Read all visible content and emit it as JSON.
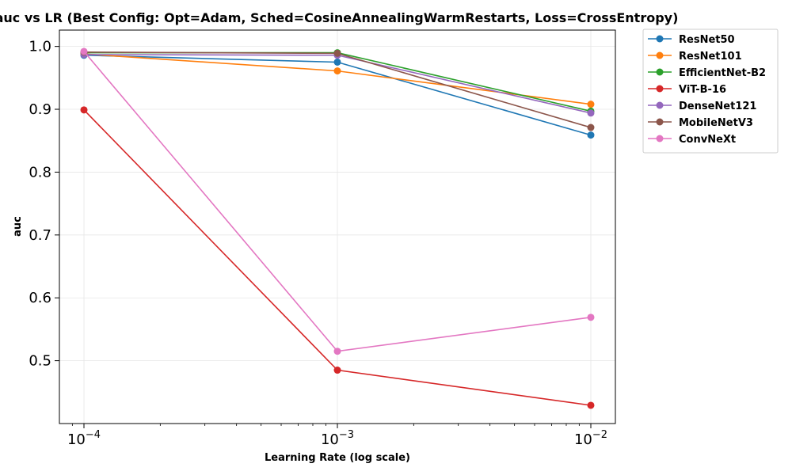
{
  "chart_data": {
    "type": "line",
    "title": "auc vs LR (Best Config: Opt=Adam, Sched=CosineAnnealingWarmRestarts, Loss=CrossEntropy)",
    "xlabel": "Learning Rate (log scale)",
    "ylabel": "auc",
    "xscale": "log",
    "x": [
      0.0001,
      0.001,
      0.01
    ],
    "xlim": [
      8e-05,
      0.0125
    ],
    "ylim": [
      0.4,
      1.026
    ],
    "grid": true,
    "legend_position": "outside-top-right",
    "x_tick_labels": [
      {
        "value": 0.0001,
        "base": "10",
        "exp": "−4"
      },
      {
        "value": 0.001,
        "base": "10",
        "exp": "−3"
      },
      {
        "value": 0.01,
        "base": "10",
        "exp": "−2"
      }
    ],
    "y_ticks": [
      0.5,
      0.6,
      0.7,
      0.8,
      0.9,
      1.0
    ],
    "y_tick_labels": [
      "0.5",
      "0.6",
      "0.7",
      "0.8",
      "0.9",
      "1.0"
    ],
    "series": [
      {
        "name": "ResNet50",
        "color": "#1f77b4",
        "values": [
          0.986,
          0.975,
          0.859
        ]
      },
      {
        "name": "ResNet101",
        "color": "#ff7f0e",
        "values": [
          0.988,
          0.961,
          0.908
        ]
      },
      {
        "name": "EfficientNet-B2",
        "color": "#2ca02c",
        "values": [
          0.99,
          0.99,
          0.897
        ]
      },
      {
        "name": "ViT-B-16",
        "color": "#d62728",
        "values": [
          0.899,
          0.485,
          0.429
        ]
      },
      {
        "name": "DenseNet121",
        "color": "#9467bd",
        "values": [
          0.987,
          0.986,
          0.894
        ]
      },
      {
        "name": "MobileNetV3",
        "color": "#8c564b",
        "values": [
          0.991,
          0.989,
          0.871
        ]
      },
      {
        "name": "ConvNeXt",
        "color": "#e377c2",
        "values": [
          0.992,
          0.515,
          0.569
        ]
      }
    ]
  }
}
